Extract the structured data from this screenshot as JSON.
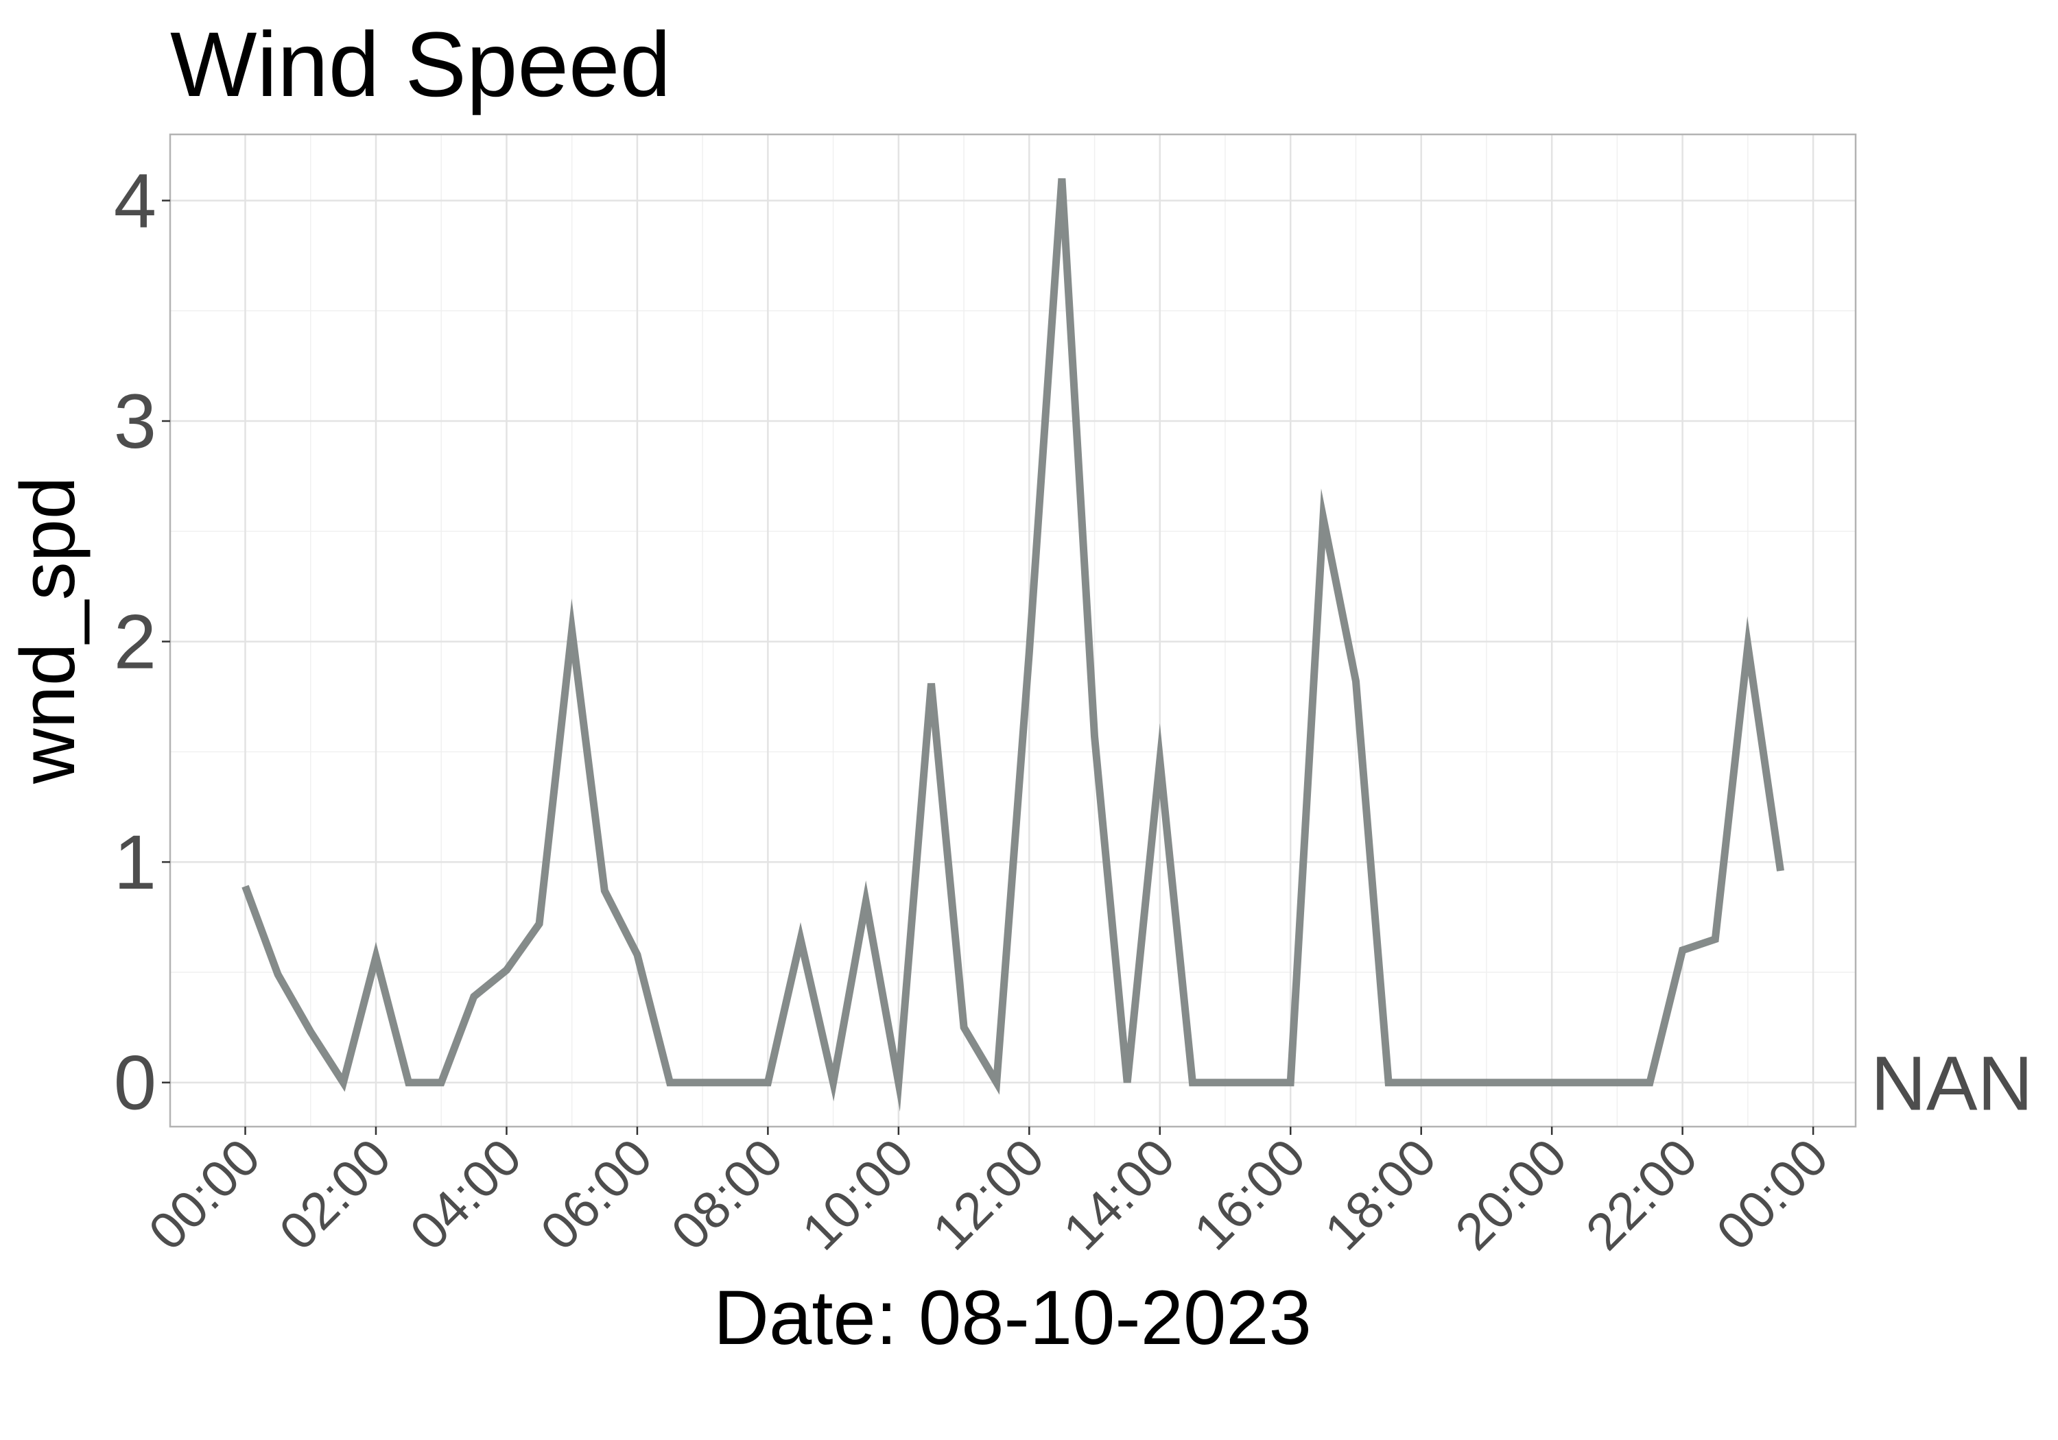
{
  "chart_data": {
    "type": "line",
    "title": "Wind Speed",
    "xlabel": "Date: 08-10-2023",
    "ylabel": "wnd_spd",
    "x_unit": "hour of day",
    "xlim": [
      -1.15,
      24.65
    ],
    "ylim": [
      -0.2,
      4.3
    ],
    "y_ticks": [
      {
        "value": 0,
        "label": "0"
      },
      {
        "value": 1,
        "label": "1"
      },
      {
        "value": 2,
        "label": "2"
      },
      {
        "value": 3,
        "label": "3"
      },
      {
        "value": 4,
        "label": "4"
      }
    ],
    "x_ticks": [
      {
        "value": 0,
        "label": "00:00"
      },
      {
        "value": 2,
        "label": "02:00"
      },
      {
        "value": 4,
        "label": "04:00"
      },
      {
        "value": 6,
        "label": "06:00"
      },
      {
        "value": 8,
        "label": "08:00"
      },
      {
        "value": 10,
        "label": "10:00"
      },
      {
        "value": 12,
        "label": "12:00"
      },
      {
        "value": 14,
        "label": "14:00"
      },
      {
        "value": 16,
        "label": "16:00"
      },
      {
        "value": 18,
        "label": "18:00"
      },
      {
        "value": 20,
        "label": "20:00"
      },
      {
        "value": 22,
        "label": "22:00"
      },
      {
        "value": 24,
        "label": "00:00"
      }
    ],
    "grid": true,
    "series": [
      {
        "color": "#858b8a",
        "end_label": "NAN",
        "x": [
          0,
          0.5,
          1,
          1.5,
          2,
          2.5,
          3,
          3.5,
          4,
          4.5,
          5,
          5.5,
          6,
          6.5,
          7,
          7.5,
          8,
          8.5,
          9,
          9.5,
          10,
          10.5,
          11,
          11.5,
          12,
          12.5,
          13,
          13.5,
          14,
          14.5,
          15,
          15.5,
          16,
          16.5,
          17,
          17.5,
          18,
          18.5,
          19,
          19.5,
          20,
          20.5,
          21,
          21.5,
          22,
          22.5,
          23,
          23.5
        ],
        "y": [
          0.89,
          0.49,
          0.23,
          0,
          0.57,
          0,
          0,
          0.39,
          0.51,
          0.72,
          2.05,
          0.87,
          0.58,
          0,
          0,
          0,
          0,
          0.65,
          0,
          0.82,
          0,
          1.81,
          0.25,
          0,
          1.95,
          4.1,
          1.57,
          0,
          1.46,
          0,
          0,
          0,
          0,
          2.56,
          1.82,
          0,
          0,
          0,
          0,
          0,
          0,
          0,
          0,
          0,
          0.6,
          0.65,
          1.98,
          0.96
        ]
      }
    ]
  }
}
